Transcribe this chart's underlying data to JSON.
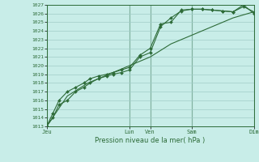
{
  "xlabel": "Pression niveau de la mer( hPa )",
  "background_color": "#c8ede8",
  "grid_color_major": "#a0ccc8",
  "grid_color_minor": "#b8e0dc",
  "line_color": "#2d6b38",
  "ylim": [
    1013,
    1027
  ],
  "yticks": [
    1013,
    1014,
    1015,
    1016,
    1017,
    1018,
    1019,
    1020,
    1021,
    1022,
    1023,
    1024,
    1025,
    1026,
    1027
  ],
  "day_labels": [
    "Jeu",
    "Lun",
    "Ven",
    "Sam",
    "Dim"
  ],
  "day_x": [
    0.0,
    4.0,
    5.0,
    7.0,
    10.0
  ],
  "xlim": [
    0,
    10.0
  ],
  "series1_x": [
    0.0,
    0.3,
    0.6,
    1.0,
    1.4,
    1.8,
    2.1,
    2.5,
    2.9,
    3.2,
    3.6,
    4.0,
    4.5,
    5.0,
    5.5,
    6.0,
    6.5,
    7.0,
    7.5,
    8.0,
    8.5,
    9.0,
    9.5,
    10.0
  ],
  "series1_y": [
    1013.0,
    1014.0,
    1015.5,
    1016.0,
    1017.0,
    1017.5,
    1018.0,
    1018.5,
    1018.8,
    1019.0,
    1019.2,
    1019.5,
    1021.0,
    1021.5,
    1024.5,
    1025.5,
    1026.3,
    1026.5,
    1026.5,
    1026.4,
    1026.3,
    1026.2,
    1027.0,
    1026.0
  ],
  "series2_x": [
    0.0,
    0.3,
    0.6,
    1.0,
    1.4,
    1.8,
    2.1,
    2.5,
    2.9,
    3.2,
    3.6,
    4.0,
    4.5,
    5.0,
    5.5,
    6.0,
    6.5,
    7.0,
    7.5,
    8.0,
    8.5,
    9.0,
    9.5,
    10.0
  ],
  "series2_y": [
    1013.0,
    1014.5,
    1016.0,
    1017.0,
    1017.5,
    1018.0,
    1018.5,
    1018.8,
    1019.0,
    1019.2,
    1019.5,
    1019.8,
    1021.2,
    1022.0,
    1024.8,
    1025.0,
    1026.4,
    1026.5,
    1026.5,
    1026.4,
    1026.3,
    1026.2,
    1026.8,
    1026.2
  ],
  "series3_x": [
    0.0,
    1.0,
    2.0,
    3.0,
    4.0,
    5.0,
    6.0,
    7.0,
    8.0,
    9.0,
    10.0
  ],
  "series3_y": [
    1013.0,
    1016.5,
    1018.0,
    1019.0,
    1020.0,
    1021.0,
    1022.5,
    1023.5,
    1024.5,
    1025.5,
    1026.2
  ]
}
